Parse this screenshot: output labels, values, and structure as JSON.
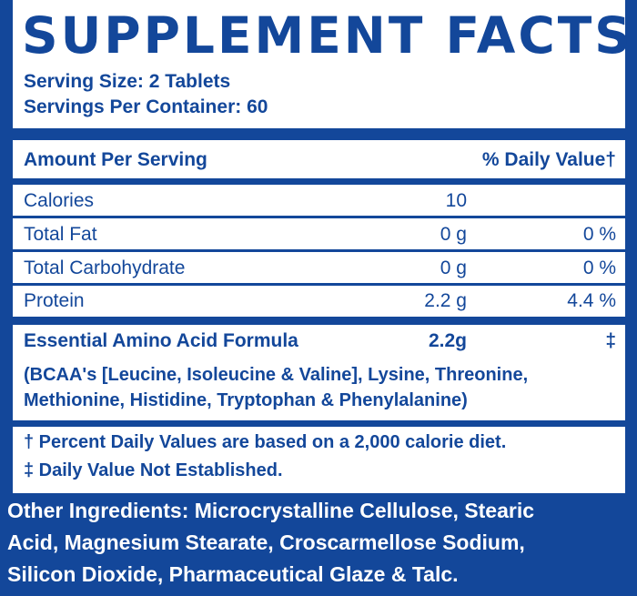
{
  "title": "SUPPLEMENT FACTS",
  "serving": {
    "size": "Serving Size: 2 Tablets",
    "per_container": "Servings Per Container: 60"
  },
  "header": {
    "amount": "Amount Per Serving",
    "daily_value": "% Daily Value†"
  },
  "rows": [
    {
      "label": "Calories",
      "amount": "10",
      "dv": ""
    },
    {
      "label": "Total Fat",
      "amount": "0 g",
      "dv": "0 %"
    },
    {
      "label": "Total Carbohydrate",
      "amount": "0 g",
      "dv": "0 %"
    },
    {
      "label": "Protein",
      "amount": "2.2 g",
      "dv": "4.4 %"
    }
  ],
  "formula": {
    "label": "Essential Amino Acid Formula",
    "amount": "2.2g",
    "dv": "‡",
    "details": [
      "(BCAA's [Leucine, Isoleucine & Valine], Lysine, Threonine,",
      "Methionine, Histidine, Tryptophan & Phenylalanine)"
    ]
  },
  "footnotes": [
    "† Percent Daily Values are based on a 2,000 calorie diet.",
    "‡ Daily Value Not Established."
  ],
  "other_ingredients": [
    "Other Ingredients: Microcrystalline Cellulose, Stearic",
    "Acid, Magnesium Stearate, Croscarmellose Sodium,",
    "Silicon Dioxide, Pharmaceutical Glaze & Talc."
  ],
  "colors": {
    "brand_blue": "#13479a",
    "background": "#ffffff"
  }
}
